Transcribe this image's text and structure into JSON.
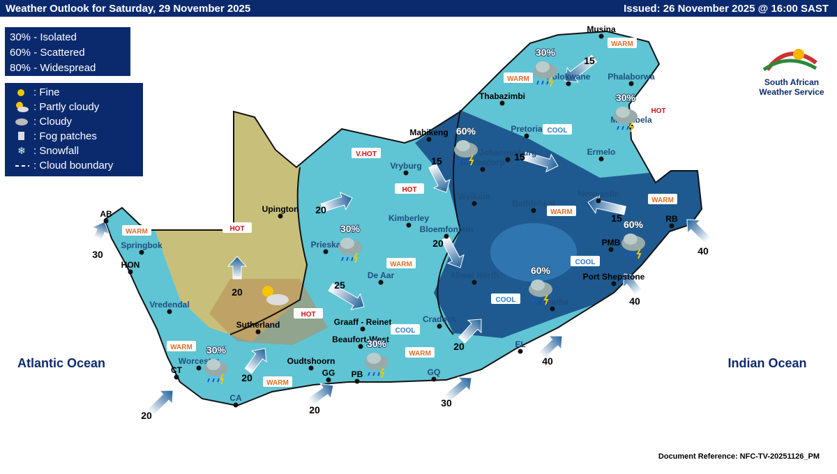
{
  "header": {
    "title": "Weather Outlook for Saturday, 29 November 2025",
    "issued": "Issued: 26 November 2025 @ 16:00 SAST"
  },
  "probability_legend": [
    "30% - Isolated",
    "60% - Scattered",
    "80% - Widespread"
  ],
  "icon_legend": [
    ": Fine",
    ": Partly cloudy",
    ": Cloudy",
    ": Fog patches",
    ": Snowfall",
    ": Cloud boundary"
  ],
  "logo": {
    "name_line1": "South African",
    "name_line2": "Weather Service"
  },
  "oceans": [
    "Atlantic Ocean",
    "Indian Ocean"
  ],
  "places": [
    "Musina",
    "Phalaborwa",
    "Polokwane",
    "Thabazimbi",
    "Mbombela",
    "Pretoria",
    "Ermelo",
    "Mahikeng",
    "Johannesburg",
    "Klerksdorp",
    "Vryburg",
    "Welkom",
    "Newcastle",
    "Bethlehem",
    "Upington",
    "Kimberley",
    "Bloemfontein",
    "Prieska",
    "De Aar",
    "Aliwal North",
    "Port Shepstone",
    "Mthatha",
    "PMB",
    "RB",
    "AB",
    "HON",
    "Springbok",
    "Vredendal",
    "Sutherland",
    "Graaff - Reinet",
    "Beaufort-West",
    "Cradock",
    "Oudtshoorn",
    "GG",
    "PB",
    "GQ",
    "EL",
    "CT",
    "Worcester",
    "CA"
  ],
  "zones": [
    "WARM",
    "WARM",
    "HOT",
    "COOL",
    "V.HOT",
    "HOT",
    "WARM",
    "HOT",
    "WARM",
    "WARM",
    "WARM",
    "COOL",
    "COOL",
    "HOT",
    "COOL",
    "WARM",
    "WARM",
    "WARM"
  ],
  "rain": [
    "30%",
    "30%",
    "60%",
    "30%",
    "60%",
    "60%",
    "30%",
    "30%"
  ],
  "winds": [
    "15",
    "15",
    "15",
    "20",
    "15",
    "20",
    "40",
    "30",
    "20",
    "25",
    "40",
    "20",
    "40",
    "20",
    "20",
    "20",
    "30"
  ],
  "footer": {
    "reference": "Document Reference:  NFC-TV-20251126_PM"
  }
}
